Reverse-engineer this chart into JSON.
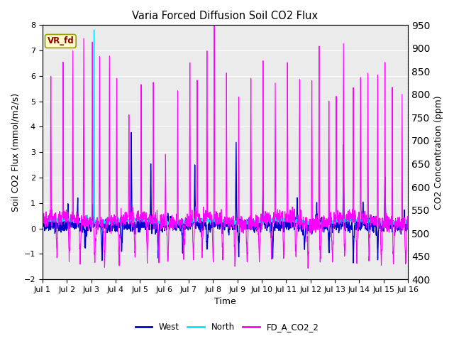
{
  "title": "Varia Forced Diffusion Soil CO2 Flux",
  "xlabel": "Time",
  "ylabel_left": "Soil CO2 Flux (mmol/m2/s)",
  "ylabel_right": "CO2 Concentration (ppm)",
  "ylim_left": [
    -2.0,
    8.0
  ],
  "ylim_right": [
    400,
    950
  ],
  "yticks_left": [
    -2.0,
    -1.0,
    0.0,
    1.0,
    2.0,
    3.0,
    4.0,
    5.0,
    6.0,
    7.0,
    8.0
  ],
  "yticks_right": [
    400,
    450,
    500,
    550,
    600,
    650,
    700,
    750,
    800,
    850,
    900,
    950
  ],
  "xtick_labels": [
    "Jul 1",
    "Jul 2",
    "Jul 3",
    "Jul 4",
    "Jul 5",
    "Jul 6",
    "Jul 7",
    "Jul 8",
    "Jul 9",
    "Jul 10",
    "Jul 11",
    "Jul 12",
    "Jul 13",
    "Jul 14",
    "Jul 15",
    "Jul 16"
  ],
  "color_west": "#0000cd",
  "color_north": "#00e5ff",
  "color_co2": "#ff00ff",
  "legend_labels": [
    "West",
    "North",
    "FD_A_CO2_2"
  ],
  "annotation_text": "VR_fd",
  "annotation_bbox_facecolor": "#ffffcc",
  "annotation_bbox_edgecolor": "#999900",
  "bg_color": "#ebebeb",
  "linewidth_west": 1.0,
  "linewidth_north": 1.0,
  "linewidth_co2": 0.8,
  "n_days": 15,
  "points_per_day": 144,
  "figsize": [
    6.4,
    4.8
  ],
  "dpi": 100
}
